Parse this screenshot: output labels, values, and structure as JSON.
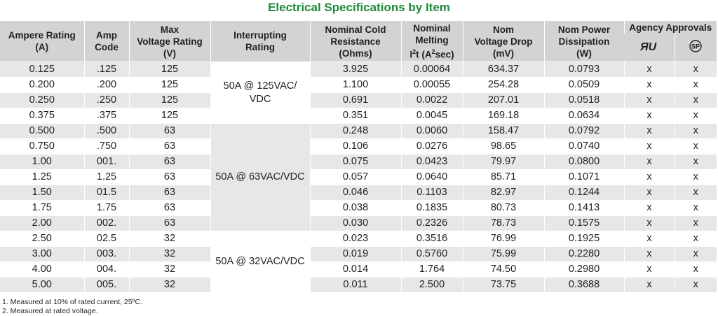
{
  "title": "Electrical Specifications by Item",
  "headers": {
    "ampere_rating": [
      "Ampere Rating",
      "(A)"
    ],
    "amp_code": [
      "Amp",
      "Code"
    ],
    "max_voltage": [
      "Max",
      "Voltage Rating",
      "(V)"
    ],
    "interrupting": [
      "Interrupting",
      "Rating"
    ],
    "cold_resistance": [
      "Nominal Cold",
      "Resistance",
      "(Ohms)"
    ],
    "melting_pre": "Nominal",
    "melting_mid": "Melting",
    "melting_i": "I",
    "melting_sup": "2",
    "melting_t": "t (A",
    "melting_sup2": "2",
    "melting_end": "sec)",
    "voltage_drop": [
      "Nom",
      "Voltage Drop",
      "(mV)"
    ],
    "power": [
      "Nom Power",
      "Dissipation",
      "(W)"
    ],
    "agency": "Agency Approvals"
  },
  "agency_icons": [
    "ul-recognized-icon",
    "csa-icon"
  ],
  "interrupting_groups": [
    {
      "lines": [
        "50A @ 125VAC/",
        "VDC"
      ]
    },
    {
      "lines": [
        "50A @ 63VAC/VDC"
      ]
    },
    {
      "lines": [
        "50A @ 32VAC/VDC"
      ]
    }
  ],
  "rows": [
    {
      "amp": "0.125",
      "code": ".125",
      "volt": "125",
      "res": "3.925",
      "melt": "0.00064",
      "drop": "634.37",
      "power": "0.0793",
      "ul": "x",
      "csa": "x"
    },
    {
      "amp": "0.200",
      "code": ".200",
      "volt": "125",
      "res": "1.100",
      "melt": "0.00055",
      "drop": "254.28",
      "power": "0.0509",
      "ul": "x",
      "csa": "x"
    },
    {
      "amp": "0.250",
      "code": ".250",
      "volt": "125",
      "res": "0.691",
      "melt": "0.0022",
      "drop": "207.01",
      "power": "0.0518",
      "ul": "x",
      "csa": "x"
    },
    {
      "amp": "0.375",
      "code": ".375",
      "volt": "125",
      "res": "0.351",
      "melt": "0.0045",
      "drop": "169.18",
      "power": "0.0634",
      "ul": "x",
      "csa": "x"
    },
    {
      "amp": "0.500",
      "code": ".500",
      "volt": "63",
      "res": "0.248",
      "melt": "0.0060",
      "drop": "158.47",
      "power": "0.0792",
      "ul": "x",
      "csa": "x"
    },
    {
      "amp": "0.750",
      "code": ".750",
      "volt": "63",
      "res": "0.106",
      "melt": "0.0276",
      "drop": "98.65",
      "power": "0.0740",
      "ul": "x",
      "csa": "x"
    },
    {
      "amp": "1.00",
      "code": "001.",
      "volt": "63",
      "res": "0.075",
      "melt": "0.0423",
      "drop": "79.97",
      "power": "0.0800",
      "ul": "x",
      "csa": "x"
    },
    {
      "amp": "1.25",
      "code": "1.25",
      "volt": "63",
      "res": "0.057",
      "melt": "0.0640",
      "drop": "85.71",
      "power": "0.1071",
      "ul": "x",
      "csa": "x"
    },
    {
      "amp": "1.50",
      "code": "01.5",
      "volt": "63",
      "res": "0.046",
      "melt": "0.1103",
      "drop": "82.97",
      "power": "0.1244",
      "ul": "x",
      "csa": "x"
    },
    {
      "amp": "1.75",
      "code": "1.75",
      "volt": "63",
      "res": "0.038",
      "melt": "0.1835",
      "drop": "80.73",
      "power": "0.1413",
      "ul": "x",
      "csa": "x"
    },
    {
      "amp": "2.00",
      "code": "002.",
      "volt": "63",
      "res": "0.030",
      "melt": "0.2326",
      "drop": "78.73",
      "power": "0.1575",
      "ul": "x",
      "csa": "x"
    },
    {
      "amp": "2.50",
      "code": "02.5",
      "volt": "32",
      "res": "0.023",
      "melt": "0.3516",
      "drop": "76.99",
      "power": "0.1925",
      "ul": "x",
      "csa": "x"
    },
    {
      "amp": "3.00",
      "code": "003.",
      "volt": "32",
      "res": "0.019",
      "melt": "0.5760",
      "drop": "75.99",
      "power": "0.2280",
      "ul": "x",
      "csa": "x"
    },
    {
      "amp": "4.00",
      "code": "004.",
      "volt": "32",
      "res": "0.014",
      "melt": "1.764",
      "drop": "74.50",
      "power": "0.2980",
      "ul": "x",
      "csa": "x"
    },
    {
      "amp": "5.00",
      "code": "005.",
      "volt": "32",
      "res": "0.011",
      "melt": "2.500",
      "drop": "73.75",
      "power": "0.3688",
      "ul": "x",
      "csa": "x"
    }
  ],
  "notes": [
    "1.  Measured at 10% of rated current, 25ºC.",
    "2.  Measured at rated voltage."
  ],
  "colors": {
    "title": "#1f8a3c",
    "header_bg": "#d1d3d4",
    "row_shade": "#e6e7e8"
  }
}
